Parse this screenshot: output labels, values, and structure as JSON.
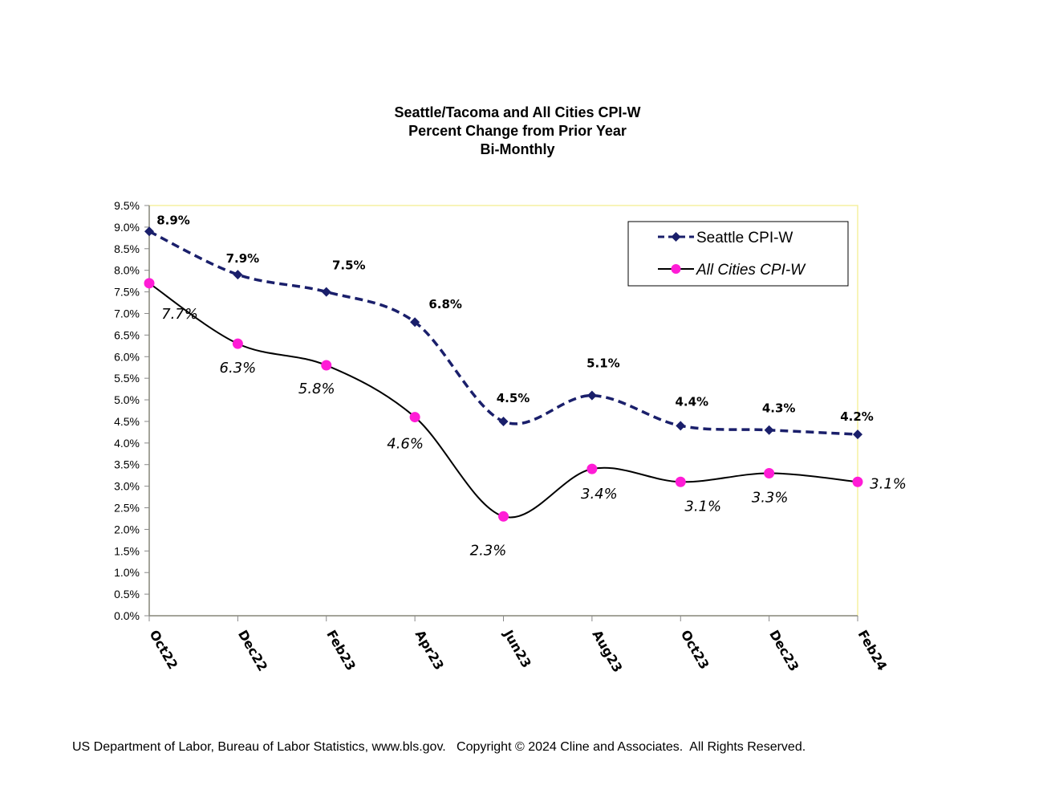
{
  "chart_data": {
    "type": "line",
    "title_lines": [
      "Seattle/Tacoma and All Cities CPI-W",
      "Percent Change from Prior Year",
      "Bi-Monthly"
    ],
    "categories": [
      "Oct22",
      "Dec22",
      "Feb23",
      "Apr23",
      "Jun23",
      "Aug23",
      "Oct23",
      "Dec23",
      "Feb24"
    ],
    "ylim": [
      0,
      9.5
    ],
    "yticks": [
      "0.0%",
      "0.5%",
      "1.0%",
      "1.5%",
      "2.0%",
      "2.5%",
      "3.0%",
      "3.5%",
      "4.0%",
      "4.5%",
      "5.0%",
      "5.5%",
      "6.0%",
      "6.5%",
      "7.0%",
      "7.5%",
      "8.0%",
      "8.5%",
      "9.0%",
      "9.5%"
    ],
    "xlabel": "",
    "ylabel": "",
    "grid": false,
    "legend_position": "top-right",
    "series": [
      {
        "name": "Seattle CPI-W",
        "values": [
          8.9,
          7.9,
          7.5,
          6.8,
          4.5,
          5.1,
          4.4,
          4.3,
          4.2
        ],
        "labels": [
          "8.9%",
          "7.9%",
          "7.5%",
          "6.8%",
          "4.5%",
          "5.1%",
          "4.4%",
          "4.3%",
          "4.2%"
        ],
        "color": "#1a1f6b",
        "line_style": "dashed",
        "marker": "diamond"
      },
      {
        "name": "All Cities CPI-W",
        "values": [
          7.7,
          6.3,
          5.8,
          4.6,
          2.3,
          3.4,
          3.1,
          3.3,
          3.1
        ],
        "labels": [
          "7.7%",
          "6.3%",
          "5.8%",
          "4.6%",
          "2.3%",
          "3.4%",
          "3.1%",
          "3.3%",
          "3.1%"
        ],
        "color": "#000000",
        "marker_color": "#ff1cd6",
        "line_style": "solid",
        "marker": "circle"
      }
    ],
    "plot_border_color": "#f5f0a0"
  },
  "footer": {
    "source": "US Department of Labor, Bureau of Labor Statistics, www.bls.gov.   Copyright © 2024 Cline and Associates.  All Rights Reserved."
  }
}
